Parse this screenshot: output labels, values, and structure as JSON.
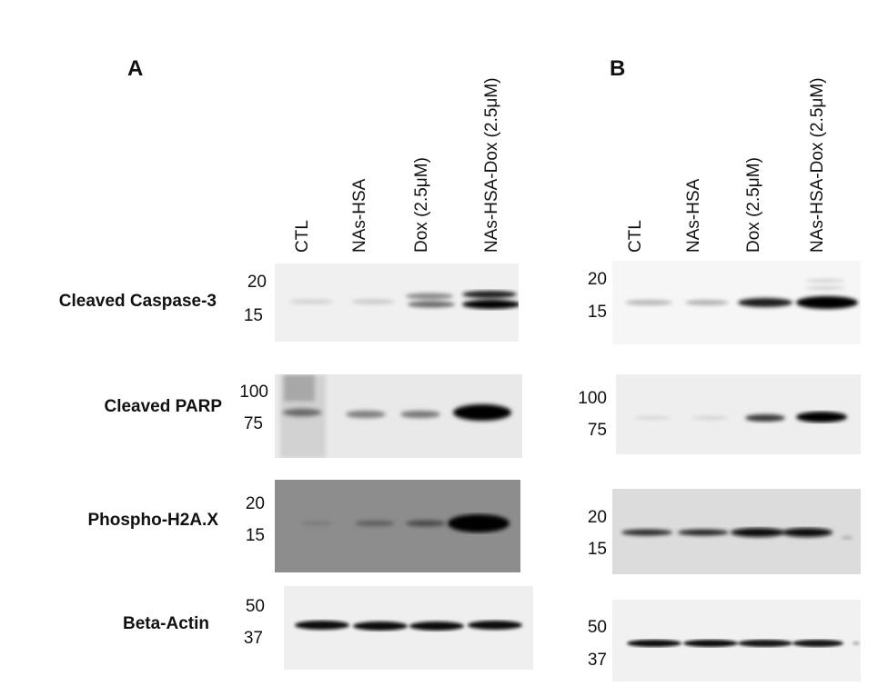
{
  "panels": [
    {
      "letter": "A",
      "lanes": [
        "CTL",
        "NAs-HSA",
        "Dox (2.5μM)",
        "NAs-HSA-Dox (2.5μM)"
      ],
      "markers": [
        [
          "20",
          "15"
        ],
        [
          "100",
          "75"
        ],
        [
          "20",
          "15"
        ],
        [
          "50",
          "37"
        ]
      ]
    },
    {
      "letter": "B",
      "lanes": [
        "CTL",
        "NAs-HSA",
        "Dox (2.5μM)",
        "NAs-HSA-Dox (2.5μM)"
      ],
      "markers": [
        [
          "20",
          "15"
        ],
        [
          "100",
          "75"
        ],
        [
          "20",
          "15"
        ],
        [
          "50",
          "37"
        ]
      ]
    }
  ],
  "rows": [
    {
      "label": "Cleaved Caspase-3"
    },
    {
      "label": "Cleaved PARP"
    },
    {
      "label": "Phospho-H2A.X"
    },
    {
      "label": "Beta-Actin"
    }
  ],
  "colors": {
    "blot_light": "#f1f1f1",
    "blot_gray": "#8f8f8f",
    "band": "#0a0a0a"
  }
}
